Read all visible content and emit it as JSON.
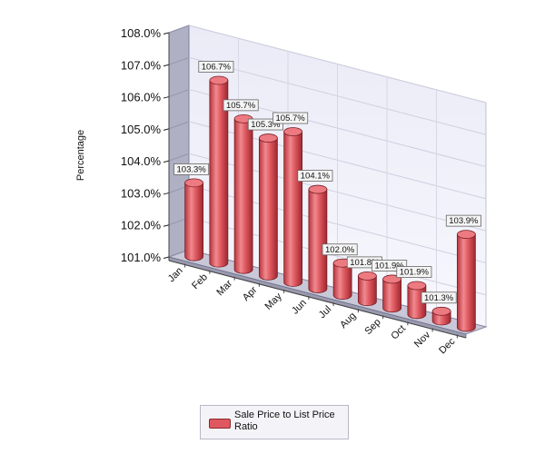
{
  "chart_data": {
    "type": "bar",
    "title": "",
    "xlabel": "",
    "ylabel": "Percentage",
    "ylim": [
      101.0,
      108.0
    ],
    "y_ticks": [
      "101.0%",
      "102.0%",
      "103.0%",
      "104.0%",
      "105.0%",
      "106.0%",
      "107.0%",
      "108.0%"
    ],
    "categories": [
      "Jan",
      "Feb",
      "Mar",
      "Apr",
      "May",
      "Jun",
      "Jul",
      "Aug",
      "Sep",
      "Oct",
      "Nov",
      "Dec"
    ],
    "series": [
      {
        "name": "Sale Price to List Price Ratio",
        "values": [
          103.3,
          106.7,
          105.7,
          105.3,
          105.7,
          104.1,
          102.0,
          101.8,
          101.9,
          101.9,
          101.3,
          103.9
        ],
        "labels": [
          "103.3%",
          "106.7%",
          "105.7%",
          "105.3%",
          "105.7%",
          "104.1%",
          "102.0%",
          "101.8%",
          "101.9%",
          "101.9%",
          "101.3%",
          "103.9%"
        ]
      }
    ],
    "grid": true,
    "legend_position": "bottom",
    "bar_color": "#e0585f"
  },
  "legend": {
    "label": "Sale Price to List Price Ratio"
  }
}
